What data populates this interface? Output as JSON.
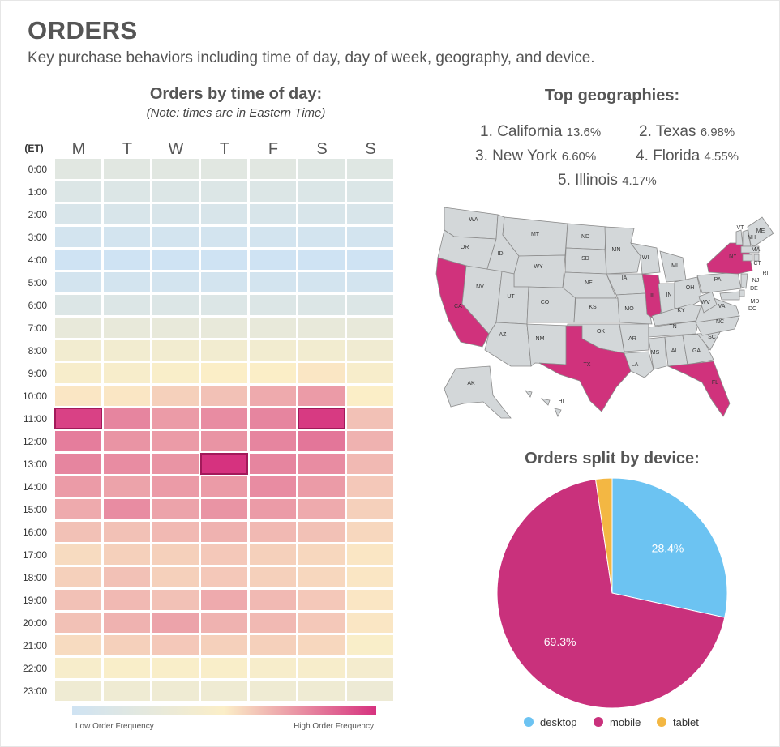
{
  "header": {
    "title": "ORDERS",
    "subtitle": "Key purchase behaviors including time of day, day of week, geography, and device."
  },
  "heatmap": {
    "title": "Orders by time of day:",
    "note": "(Note: times are in Eastern Time)",
    "corner_label": "(ET)",
    "legend_low": "Low Order Frequency",
    "legend_high": "High Order Frequency",
    "colors": {
      "low": "#cfe3f3",
      "mid": "#fbeec7",
      "high": "#d6327f"
    }
  },
  "geographies": {
    "title": "Top geographies:",
    "items": [
      {
        "label": "1. California",
        "pct": "13.6%"
      },
      {
        "label": "2. Texas",
        "pct": "6.98%"
      },
      {
        "label": "3. New York",
        "pct": "6.60%"
      },
      {
        "label": "4. Florida",
        "pct": "4.55%"
      },
      {
        "label": "5. Illinois",
        "pct": "4.17%"
      }
    ],
    "map": {
      "highlight_color": "#d0327c",
      "base_color": "#d3d7d9",
      "highlighted": [
        "CA",
        "TX",
        "NY",
        "FL",
        "IL"
      ],
      "state_labels": [
        "WA",
        "OR",
        "CA",
        "ID",
        "NV",
        "MT",
        "WY",
        "UT",
        "AZ",
        "CO",
        "NM",
        "ND",
        "SD",
        "NE",
        "KS",
        "OK",
        "TX",
        "MN",
        "IA",
        "MO",
        "AR",
        "LA",
        "WI",
        "IL",
        "MI",
        "IN",
        "OH",
        "KY",
        "TN",
        "MS",
        "AL",
        "GA",
        "FL",
        "SC",
        "NC",
        "VA",
        "WV",
        "PA",
        "NY",
        "VT",
        "ME",
        "NH",
        "MA",
        "RI",
        "CT",
        "NJ",
        "DE",
        "MD",
        "DC",
        "AK",
        "HI"
      ]
    }
  },
  "device": {
    "title": "Orders split by device:"
  },
  "chart_data": [
    {
      "type": "heatmap",
      "title": "Orders by time of day:",
      "x": [
        "M",
        "T",
        "W",
        "T",
        "F",
        "S",
        "S"
      ],
      "y": [
        "0:00",
        "1:00",
        "2:00",
        "3:00",
        "4:00",
        "5:00",
        "6:00",
        "7:00",
        "8:00",
        "9:00",
        "10:00",
        "11:00",
        "12:00",
        "13:00",
        "14:00",
        "15:00",
        "16:00",
        "17:00",
        "18:00",
        "19:00",
        "20:00",
        "21:00",
        "22:00",
        "23:00"
      ],
      "scale": [
        0,
        1
      ],
      "values": [
        [
          0.2,
          0.2,
          0.2,
          0.2,
          0.2,
          0.18,
          0.18
        ],
        [
          0.15,
          0.15,
          0.15,
          0.15,
          0.15,
          0.14,
          0.14
        ],
        [
          0.1,
          0.1,
          0.1,
          0.1,
          0.1,
          0.1,
          0.1
        ],
        [
          0.05,
          0.05,
          0.05,
          0.05,
          0.05,
          0.05,
          0.05
        ],
        [
          0.0,
          0.0,
          0.0,
          0.0,
          0.0,
          0.0,
          0.0
        ],
        [
          0.05,
          0.05,
          0.05,
          0.05,
          0.05,
          0.05,
          0.05
        ],
        [
          0.15,
          0.15,
          0.15,
          0.15,
          0.15,
          0.15,
          0.15
        ],
        [
          0.28,
          0.28,
          0.28,
          0.28,
          0.28,
          0.28,
          0.28
        ],
        [
          0.4,
          0.4,
          0.4,
          0.4,
          0.4,
          0.4,
          0.38
        ],
        [
          0.46,
          0.46,
          0.48,
          0.5,
          0.5,
          0.52,
          0.46
        ],
        [
          0.52,
          0.52,
          0.58,
          0.62,
          0.68,
          0.72,
          0.5
        ],
        [
          0.96,
          0.78,
          0.72,
          0.76,
          0.78,
          0.98,
          0.62
        ],
        [
          0.8,
          0.74,
          0.72,
          0.74,
          0.78,
          0.82,
          0.66
        ],
        [
          0.78,
          0.76,
          0.74,
          1.0,
          0.78,
          0.76,
          0.64
        ],
        [
          0.72,
          0.7,
          0.72,
          0.72,
          0.76,
          0.72,
          0.6
        ],
        [
          0.68,
          0.76,
          0.7,
          0.74,
          0.72,
          0.68,
          0.58
        ],
        [
          0.62,
          0.62,
          0.64,
          0.66,
          0.64,
          0.62,
          0.56
        ],
        [
          0.55,
          0.58,
          0.58,
          0.6,
          0.58,
          0.56,
          0.52
        ],
        [
          0.58,
          0.62,
          0.58,
          0.6,
          0.58,
          0.56,
          0.52
        ],
        [
          0.62,
          0.64,
          0.62,
          0.68,
          0.64,
          0.6,
          0.52
        ],
        [
          0.62,
          0.66,
          0.7,
          0.66,
          0.64,
          0.6,
          0.52
        ],
        [
          0.55,
          0.58,
          0.6,
          0.58,
          0.58,
          0.56,
          0.48
        ],
        [
          0.46,
          0.48,
          0.48,
          0.48,
          0.46,
          0.46,
          0.42
        ],
        [
          0.36,
          0.36,
          0.36,
          0.36,
          0.36,
          0.36,
          0.34
        ]
      ]
    },
    {
      "type": "pie",
      "title": "Orders split by device:",
      "categories": [
        "desktop",
        "mobile",
        "tablet"
      ],
      "values": [
        28.4,
        69.3,
        2.3
      ],
      "labels": [
        "28.4%",
        "69.3%",
        ""
      ],
      "colors": [
        "#6cc3f2",
        "#c9317c",
        "#f3b743"
      ],
      "legend": "bottom"
    }
  ]
}
